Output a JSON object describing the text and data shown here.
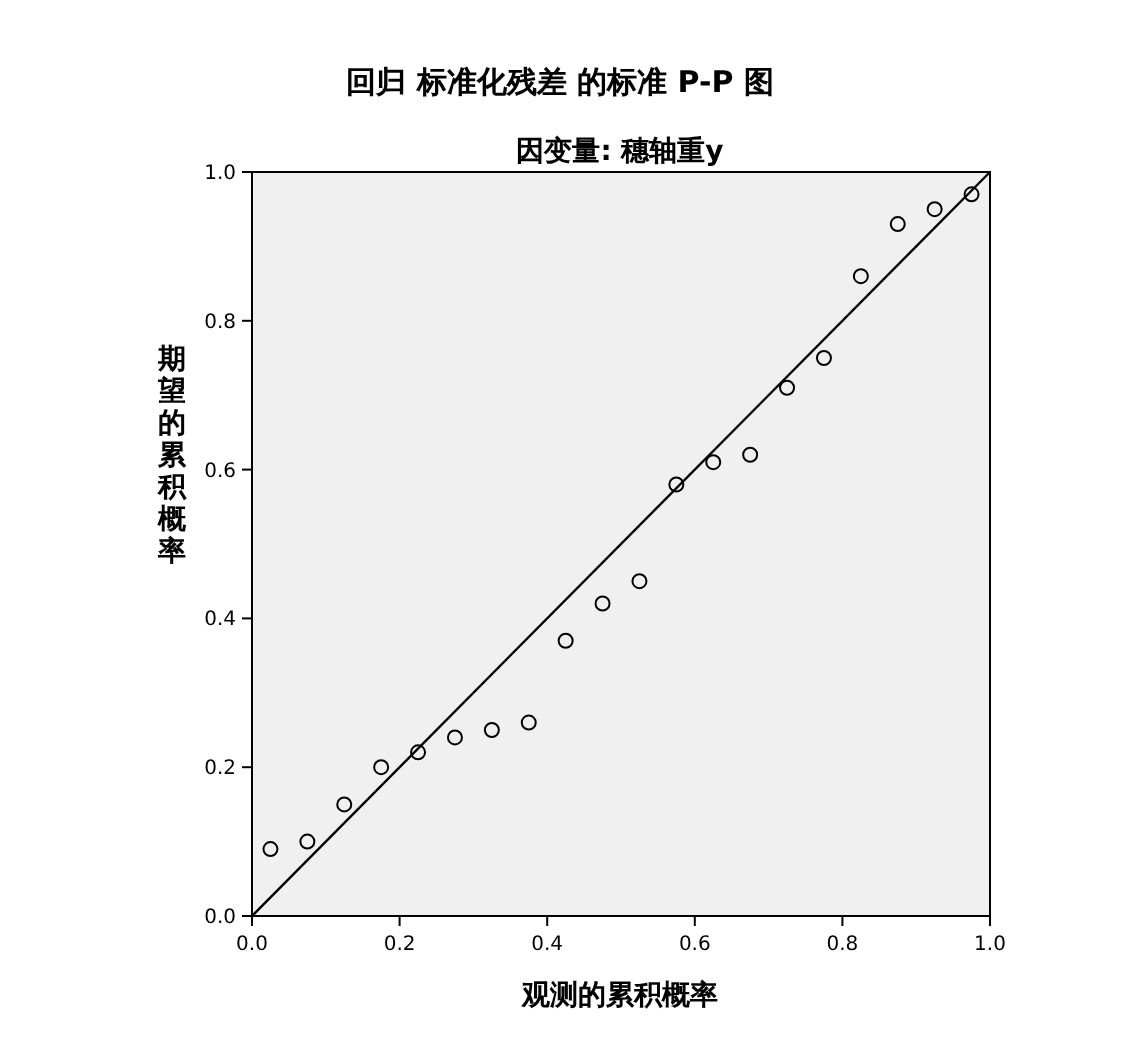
{
  "chart_data": {
    "type": "scatter",
    "title": "回归 标准化残差 的标准 P-P 图",
    "subtitle": "因变量: 穗轴重y",
    "xlabel": "观测的累积概率",
    "ylabel": "期望的累积概率",
    "x": [
      0.025,
      0.075,
      0.125,
      0.175,
      0.225,
      0.275,
      0.325,
      0.375,
      0.425,
      0.475,
      0.525,
      0.575,
      0.625,
      0.675,
      0.725,
      0.775,
      0.825,
      0.875,
      0.925,
      0.975
    ],
    "series": [
      {
        "color": "#000000",
        "marker": "circle",
        "values": [
          0.09,
          0.1,
          0.15,
          0.2,
          0.22,
          0.24,
          0.25,
          0.26,
          0.37,
          0.42,
          0.45,
          0.58,
          0.61,
          0.62,
          0.71,
          0.75,
          0.86,
          0.93,
          0.95,
          0.97
        ]
      },
      {
        "type": "line",
        "marker": "none",
        "color": "#000000",
        "x": [
          0,
          1
        ],
        "values": [
          0,
          1
        ]
      }
    ],
    "grid": false,
    "xlim": [
      0,
      1
    ],
    "ylim": [
      0,
      1
    ],
    "xticks": [
      {
        "value": 0,
        "label": "0.0"
      },
      {
        "value": 0.2,
        "label": "0.2"
      },
      {
        "value": 0.4,
        "label": "0.4"
      },
      {
        "value": 0.6,
        "label": "0.6"
      },
      {
        "value": 0.8,
        "label": "0.8"
      },
      {
        "value": 1,
        "label": "1.0"
      }
    ],
    "yticks": [
      {
        "value": 0,
        "label": "0.0"
      },
      {
        "value": 0.2,
        "label": "0.2"
      },
      {
        "value": 0.4,
        "label": "0.4"
      },
      {
        "value": 0.6,
        "label": "0.6"
      },
      {
        "value": 0.8,
        "label": "0.8"
      },
      {
        "value": 1,
        "label": "1.0"
      }
    ]
  }
}
